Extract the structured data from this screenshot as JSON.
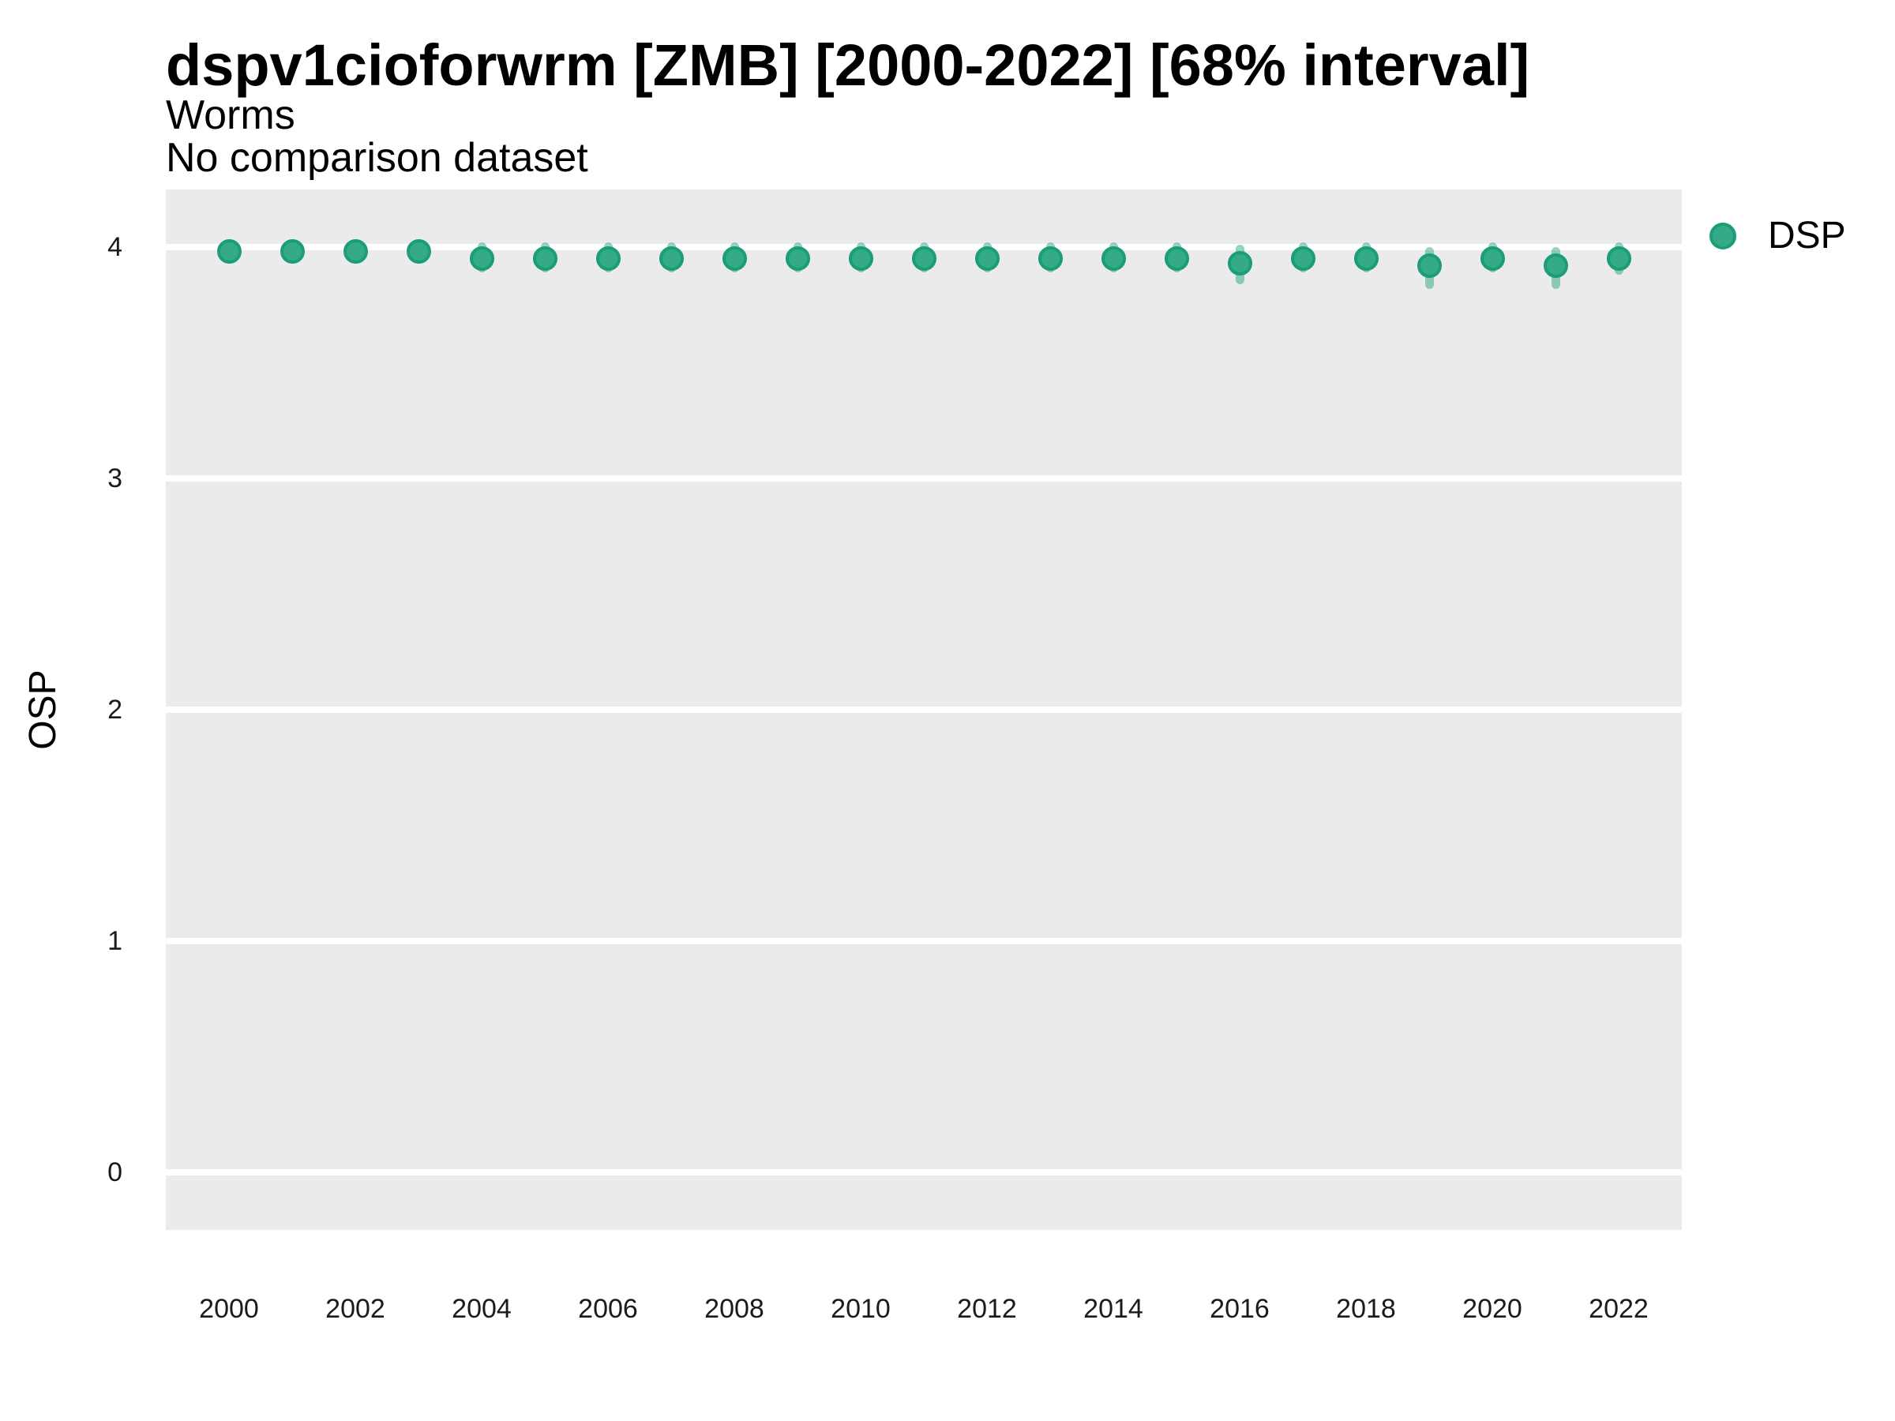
{
  "header": {
    "title": "dspv1cioforwrm [ZMB] [2000-2022] [68% interval]",
    "subtitle": "Worms",
    "comparison_note": "No comparison dataset"
  },
  "axes": {
    "y_title": "OSP",
    "y_tick_labels": [
      "4",
      "3",
      "2",
      "1",
      "0"
    ],
    "y_tick_values": [
      4,
      3,
      2,
      1,
      0
    ],
    "x_tick_labels": [
      "2000",
      "2002",
      "2004",
      "2006",
      "2008",
      "2010",
      "2012",
      "2014",
      "2016",
      "2018",
      "2020",
      "2022"
    ],
    "x_tick_values": [
      2000,
      2002,
      2004,
      2006,
      2008,
      2010,
      2012,
      2014,
      2016,
      2018,
      2020,
      2022
    ]
  },
  "legend": {
    "entries": [
      {
        "label": "DSP",
        "marker": "filled-circle"
      }
    ],
    "position": "right"
  },
  "colors": {
    "point_fill": "#35aa88",
    "point_stroke": "#1b9e77",
    "interval_band": "rgba(27, 158, 119, 0.45)",
    "panel_background": "#ebebeb",
    "gridline": "#ffffff",
    "text": "#000000"
  },
  "chart_data": {
    "type": "scatter",
    "title": "dspv1cioforwrm [ZMB] [2000-2022] [68% interval]",
    "subtitle": "Worms",
    "note": "No comparison dataset",
    "xlabel": "",
    "ylabel": "OSP",
    "xlim": [
      1999,
      2023
    ],
    "ylim": [
      -0.27,
      4.25
    ],
    "grid": "horizontal-major-only",
    "legend_position": "right",
    "interval_level": "68%",
    "series": [
      {
        "name": "DSP",
        "x": [
          2000,
          2001,
          2002,
          2003,
          2004,
          2005,
          2006,
          2007,
          2008,
          2009,
          2010,
          2011,
          2012,
          2013,
          2014,
          2015,
          2016,
          2017,
          2018,
          2019,
          2020,
          2021,
          2022
        ],
        "y": [
          3.98,
          3.98,
          3.98,
          3.98,
          3.95,
          3.95,
          3.95,
          3.95,
          3.95,
          3.95,
          3.95,
          3.95,
          3.95,
          3.95,
          3.95,
          3.95,
          3.93,
          3.95,
          3.95,
          3.92,
          3.95,
          3.92,
          3.95
        ],
        "y_lower": [
          3.94,
          3.94,
          3.94,
          3.94,
          3.89,
          3.89,
          3.89,
          3.89,
          3.89,
          3.89,
          3.89,
          3.89,
          3.89,
          3.89,
          3.89,
          3.89,
          3.84,
          3.89,
          3.89,
          3.82,
          3.89,
          3.82,
          3.88
        ],
        "y_upper": [
          4.02,
          4.02,
          4.02,
          4.02,
          4.02,
          4.02,
          4.02,
          4.02,
          4.02,
          4.02,
          4.02,
          4.02,
          4.02,
          4.02,
          4.02,
          4.02,
          4.01,
          4.02,
          4.02,
          4.0,
          4.02,
          4.0,
          4.02
        ]
      }
    ]
  }
}
